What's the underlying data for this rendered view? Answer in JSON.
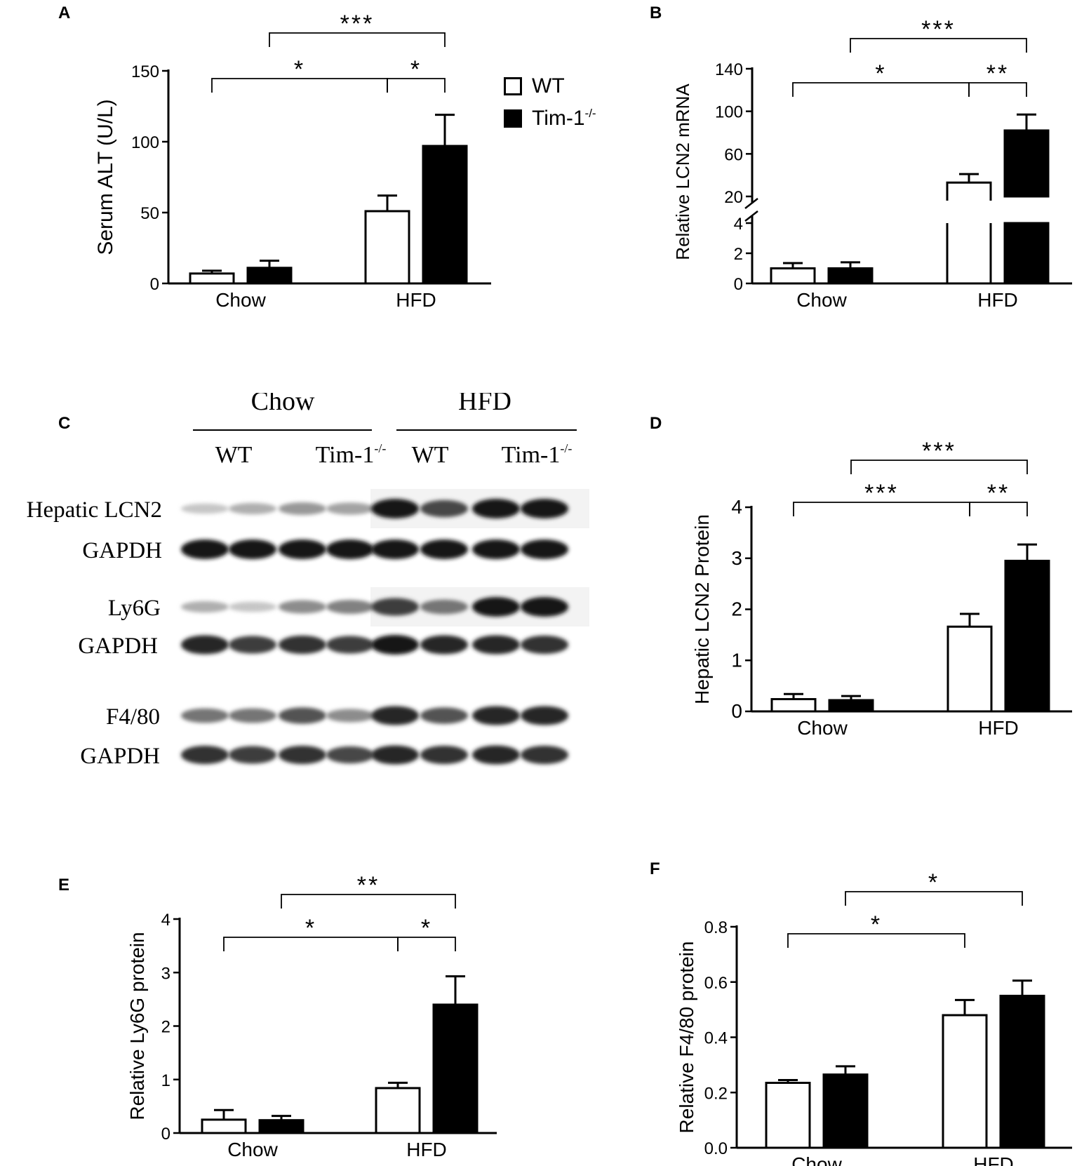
{
  "panels": {
    "A": {
      "letter": "A",
      "chart_data": {
        "type": "bar",
        "ylabel": "Serum ALT (U/L)",
        "ylim": [
          0,
          150
        ],
        "yticks": [
          0,
          50,
          100,
          150
        ],
        "categories": [
          "Chow",
          "HFD"
        ],
        "series": [
          {
            "name": "WT",
            "values": [
              7,
              51
            ],
            "errors": [
              2,
              11
            ],
            "fill": "#ffffff"
          },
          {
            "name": "Tim-1-/-",
            "values": [
              11,
              97
            ],
            "errors": [
              5,
              22
            ],
            "fill": "#000000"
          }
        ],
        "significance": [
          {
            "from": [
              0,
              0
            ],
            "to": [
              1,
              0
            ],
            "label": "*"
          },
          {
            "from": [
              1,
              0
            ],
            "to": [
              1,
              1
            ],
            "label": "*"
          },
          {
            "from": [
              0,
              1
            ],
            "to": [
              1,
              1
            ],
            "label": "***"
          }
        ]
      }
    },
    "B": {
      "letter": "B",
      "chart_data": {
        "type": "bar",
        "ylabel": "Relative LCN2 mRNA",
        "axis_break": true,
        "lower_ylim": [
          0,
          4
        ],
        "lower_yticks": [
          0,
          2,
          4
        ],
        "upper_ylim": [
          20,
          140
        ],
        "upper_yticks": [
          20,
          60,
          100,
          140
        ],
        "categories": [
          "Chow",
          "HFD"
        ],
        "series": [
          {
            "name": "WT",
            "values": [
              1.0,
              33
            ],
            "errors": [
              0.35,
              8
            ],
            "fill": "#ffffff"
          },
          {
            "name": "Tim-1-/-",
            "values": [
              1.0,
              82
            ],
            "errors": [
              0.4,
              15
            ],
            "fill": "#000000"
          }
        ],
        "significance": [
          {
            "from": [
              0,
              0
            ],
            "to": [
              1,
              0
            ],
            "label": "*"
          },
          {
            "from": [
              1,
              0
            ],
            "to": [
              1,
              1
            ],
            "label": "**"
          },
          {
            "from": [
              0,
              1
            ],
            "to": [
              1,
              1
            ],
            "label": "***"
          }
        ]
      }
    },
    "C": {
      "letter": "C",
      "groups": [
        "Chow",
        "HFD"
      ],
      "lane_labels": {
        "wt": "WT",
        "tim_base": "Tim-1",
        "tim_sup": "-/-"
      },
      "rows": [
        {
          "label": "Hepatic LCN2",
          "intensity": [
            0.25,
            0.35,
            0.45,
            0.4,
            1.0,
            0.8,
            1.0,
            1.0
          ]
        },
        {
          "label": "GAPDH",
          "intensity": [
            1,
            1,
            1,
            1,
            1,
            1,
            1,
            1
          ]
        },
        {
          "label": "Ly6G",
          "intensity": [
            0.35,
            0.25,
            0.5,
            0.55,
            0.85,
            0.6,
            1.0,
            1.0
          ]
        },
        {
          "label": "GAPDH",
          "intensity": [
            0.95,
            0.85,
            0.9,
            0.85,
            1,
            0.95,
            0.95,
            0.9
          ]
        },
        {
          "label": "F4/80",
          "intensity": [
            0.6,
            0.6,
            0.75,
            0.5,
            0.95,
            0.75,
            0.95,
            0.95
          ]
        },
        {
          "label": "GAPDH",
          "intensity": [
            0.9,
            0.85,
            0.9,
            0.8,
            0.95,
            0.9,
            0.95,
            0.9
          ]
        }
      ]
    },
    "D": {
      "letter": "D",
      "chart_data": {
        "type": "bar",
        "ylabel": "Hepatic LCN2 Protein",
        "ylim": [
          0,
          4
        ],
        "yticks": [
          0,
          1,
          2,
          3,
          4
        ],
        "categories": [
          "Chow",
          "HFD"
        ],
        "series": [
          {
            "name": "WT",
            "values": [
              0.24,
              1.66
            ],
            "errors": [
              0.1,
              0.25
            ],
            "fill": "#ffffff"
          },
          {
            "name": "Tim-1-/-",
            "values": [
              0.22,
              2.95
            ],
            "errors": [
              0.08,
              0.32
            ],
            "fill": "#000000"
          }
        ],
        "significance": [
          {
            "from": [
              0,
              0
            ],
            "to": [
              1,
              0
            ],
            "label": "***"
          },
          {
            "from": [
              1,
              0
            ],
            "to": [
              1,
              1
            ],
            "label": "**"
          },
          {
            "from": [
              0,
              1
            ],
            "to": [
              1,
              1
            ],
            "label": "***"
          }
        ]
      }
    },
    "E": {
      "letter": "E",
      "chart_data": {
        "type": "bar",
        "ylabel": "Relative Ly6G protein",
        "ylim": [
          0,
          4
        ],
        "yticks": [
          0,
          1,
          2,
          3,
          4
        ],
        "categories": [
          "Chow",
          "HFD"
        ],
        "series": [
          {
            "name": "WT",
            "values": [
              0.25,
              0.84
            ],
            "errors": [
              0.18,
              0.1
            ],
            "fill": "#ffffff"
          },
          {
            "name": "Tim-1-/-",
            "values": [
              0.24,
              2.4
            ],
            "errors": [
              0.08,
              0.53
            ],
            "fill": "#000000"
          }
        ],
        "significance": [
          {
            "from": [
              0,
              0
            ],
            "to": [
              1,
              0
            ],
            "label": "*"
          },
          {
            "from": [
              1,
              0
            ],
            "to": [
              1,
              1
            ],
            "label": "*"
          },
          {
            "from": [
              0,
              1
            ],
            "to": [
              1,
              1
            ],
            "label": "**"
          }
        ]
      }
    },
    "F": {
      "letter": "F",
      "chart_data": {
        "type": "bar",
        "ylabel": "Relative F4/80 protein",
        "ylim": [
          0,
          0.8
        ],
        "yticks": [
          "0.0",
          "0.2",
          "0.4",
          "0.6",
          "0.8"
        ],
        "categories": [
          "Chow",
          "HFD"
        ],
        "series": [
          {
            "name": "WT",
            "values": [
              0.235,
              0.48
            ],
            "errors": [
              0.01,
              0.055
            ],
            "fill": "#ffffff"
          },
          {
            "name": "Tim-1-/-",
            "values": [
              0.265,
              0.55
            ],
            "errors": [
              0.03,
              0.055
            ],
            "fill": "#000000"
          }
        ],
        "significance": [
          {
            "from": [
              0,
              0
            ],
            "to": [
              1,
              0
            ],
            "label": "*"
          },
          {
            "from": [
              0,
              1
            ],
            "to": [
              1,
              1
            ],
            "label": "*"
          }
        ]
      }
    }
  },
  "legend": {
    "items": [
      {
        "label": "WT",
        "sup": "",
        "fill": "#ffffff"
      },
      {
        "label": "Tim-1",
        "sup": "-/-",
        "fill": "#000000"
      }
    ]
  }
}
